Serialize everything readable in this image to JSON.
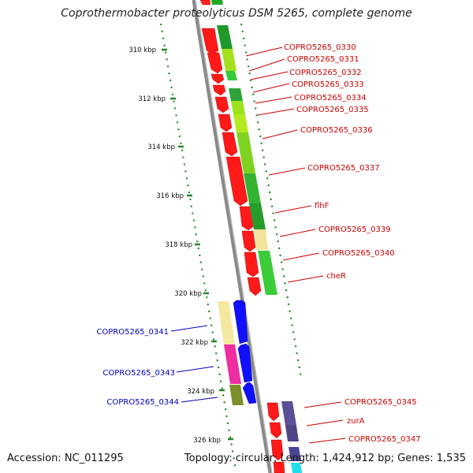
{
  "title": "Coprothermobacter proteolyticus DSM 5265, complete genome",
  "accession": "Accession: NC_011295",
  "stats": "Topology: circular; Length: 1,424,912 bp; Genes: 1,535",
  "colors": {
    "red_label": "#cc0000",
    "blue_label": "#0000bb",
    "backbone": "#888888",
    "tick": "#22882a",
    "dot": "#22882a"
  },
  "ticks": [
    "310 kbp",
    "312 kbp",
    "314 kbp",
    "316 kbp",
    "318 kbp",
    "320 kbp",
    "322 kbp",
    "324 kbp",
    "326 kbp"
  ],
  "right_labels": [
    "COPRO5265_0330",
    "COPRO5265_0331",
    "COPRO5265_0332",
    "COPRO5265_0333",
    "COPRO5265_0334",
    "COPRO5265_0335",
    "COPRO5265_0336",
    "COPRO5265_0337",
    "flhF",
    "COPRO5265_0339",
    "COPRO5265_0340",
    "cheR",
    "COPRO5265_0345",
    "zurA",
    "COPRO5265_0347"
  ],
  "left_labels": [
    "COPRO5265_0341",
    "COPRO5265_0343",
    "COPRO5265_0344"
  ]
}
